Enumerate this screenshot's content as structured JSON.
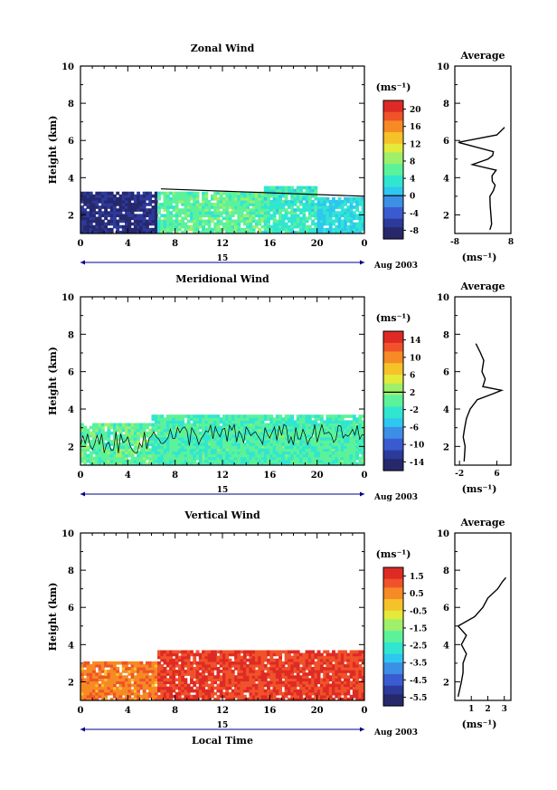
{
  "shared": {
    "time_ticks": [
      "0",
      "4",
      "8",
      "12",
      "16",
      "20",
      "0"
    ],
    "day_label": "15",
    "date_label": "Aug 2003",
    "x_axis_label": "Local Time",
    "height_ticks": [
      "2",
      "4",
      "6",
      "8",
      "10"
    ],
    "height_axis_label": "Height (km)",
    "unit_label": "(ms⁻¹)",
    "avg_title": "Average"
  },
  "panels": [
    {
      "title": "Zonal Wind",
      "colorbar_ticks": [
        "20",
        "16",
        "12",
        "8",
        "4",
        "0",
        "-4",
        "-8"
      ],
      "avg_ticks": [
        "-8",
        "8"
      ],
      "avg_profile": [
        [
          1.2,
          2
        ],
        [
          1.5,
          2.5
        ],
        [
          2,
          2.3
        ],
        [
          2.5,
          2.1
        ],
        [
          3,
          2
        ],
        [
          3.3,
          3
        ],
        [
          3.6,
          3.5
        ],
        [
          3.8,
          2.7
        ],
        [
          4.1,
          2.6
        ],
        [
          4.4,
          3.8
        ],
        [
          4.7,
          -3
        ],
        [
          5,
          1.5
        ],
        [
          5.2,
          2.8
        ],
        [
          5.4,
          3
        ],
        [
          5.9,
          -7
        ],
        [
          6.3,
          4
        ],
        [
          6.7,
          6.2
        ]
      ],
      "avg_xlim": [
        -8,
        8
      ]
    },
    {
      "title": "Meridional Wind",
      "colorbar_ticks": [
        "14",
        "10",
        "6",
        "2",
        "-2",
        "-6",
        "-10",
        "-14"
      ],
      "avg_ticks": [
        "-2",
        "6"
      ],
      "avg_profile": [
        [
          1.2,
          -1
        ],
        [
          2,
          -0.8
        ],
        [
          2.5,
          -1.2
        ],
        [
          3,
          -0.9
        ],
        [
          3.5,
          -0.5
        ],
        [
          4,
          0.3
        ],
        [
          4.5,
          1.8
        ],
        [
          4.8,
          5
        ],
        [
          5,
          7
        ],
        [
          5.2,
          3
        ],
        [
          5.6,
          3.5
        ],
        [
          6,
          2.8
        ],
        [
          6.6,
          3.2
        ],
        [
          7,
          2.5
        ],
        [
          7.5,
          1.5
        ]
      ],
      "avg_xlim": [
        -3,
        9
      ]
    },
    {
      "title": "Vertical Wind",
      "colorbar_ticks": [
        "1.5",
        "0.5",
        "-0.5",
        "-1.5",
        "-2.5",
        "-3.5",
        "-4.5",
        "-5.5"
      ],
      "avg_ticks": [
        "1",
        "2",
        "3"
      ],
      "avg_profile": [
        [
          1.2,
          0.2
        ],
        [
          2,
          0.4
        ],
        [
          2.5,
          0.5
        ],
        [
          3,
          0.5
        ],
        [
          3.5,
          0.7
        ],
        [
          4,
          0.4
        ],
        [
          4.5,
          0.7
        ],
        [
          5,
          0.2
        ],
        [
          5.5,
          1.2
        ],
        [
          6,
          1.7
        ],
        [
          6.5,
          2
        ],
        [
          7,
          2.6
        ],
        [
          7.4,
          2.9
        ],
        [
          7.6,
          3.1
        ]
      ],
      "avg_xlim": [
        0,
        3.4
      ]
    }
  ],
  "chart_data": [
    {
      "type": "heatmap",
      "title": "Zonal Wind",
      "xlabel": "",
      "ylabel": "Height (km)",
      "xlim": [
        0,
        24
      ],
      "ylim": [
        1,
        10
      ],
      "colorbar_range": [
        -10,
        22
      ],
      "colorbar_ticks": [
        20,
        16,
        12,
        8,
        4,
        0,
        -4,
        -8
      ],
      "blocks": [
        {
          "t": [
            0,
            6.5
          ],
          "h": [
            1,
            3.1
          ],
          "value": -8
        },
        {
          "t": [
            6.5,
            16
          ],
          "h": [
            1,
            3.2
          ],
          "value": 6
        },
        {
          "t": [
            15.5,
            20
          ],
          "h": [
            1,
            3.5
          ],
          "value": 4
        },
        {
          "t": [
            20,
            24
          ],
          "h": [
            1,
            2.8
          ],
          "value": 2
        }
      ],
      "zero_contour_heights_km": [
        3.4,
        3.0
      ]
    },
    {
      "type": "heatmap",
      "title": "Meridional Wind",
      "xlabel": "",
      "ylabel": "Height (km)",
      "xlim": [
        0,
        24
      ],
      "ylim": [
        1,
        10
      ],
      "colorbar_range": [
        -16,
        16
      ],
      "colorbar_ticks": [
        14,
        10,
        6,
        2,
        -2,
        -6,
        -10,
        -14
      ],
      "blocks": [
        {
          "t": [
            0,
            24
          ],
          "h": [
            1,
            3.2
          ],
          "value": 0
        },
        {
          "t": [
            6,
            24
          ],
          "h": [
            1,
            3.6
          ],
          "value": -1
        }
      ]
    },
    {
      "type": "heatmap",
      "title": "Vertical Wind",
      "xlabel": "Local Time",
      "ylabel": "Height (km)",
      "xlim": [
        0,
        24
      ],
      "ylim": [
        1,
        10
      ],
      "colorbar_range": [
        -6,
        2
      ],
      "colorbar_ticks": [
        1.5,
        0.5,
        -0.5,
        -1.5,
        -2.5,
        -3.5,
        -4.5,
        -5.5
      ],
      "blocks": [
        {
          "t": [
            0,
            6.5
          ],
          "h": [
            1,
            3
          ],
          "value": 0.6
        },
        {
          "t": [
            6.5,
            24
          ],
          "h": [
            1,
            3.6
          ],
          "value": 1.4
        }
      ]
    }
  ],
  "colors": {
    "cmap": [
      "#27286c",
      "#2c3a9c",
      "#3b5bd0",
      "#3d8fe6",
      "#2ec7f0",
      "#31e6d0",
      "#5cf29a",
      "#9ef06a",
      "#e3ea3a",
      "#f6c22a",
      "#f68a24",
      "#f0522a",
      "#de2a24"
    ]
  }
}
